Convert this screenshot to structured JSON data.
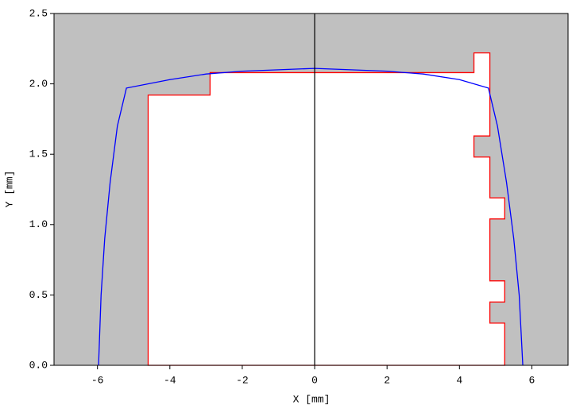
{
  "chart_data": {
    "type": "line",
    "xlabel": "X [mm]",
    "ylabel": "Y [mm]",
    "xlim": [
      -7.2,
      7
    ],
    "ylim": [
      0,
      2.5
    ],
    "xticks": [
      -6,
      -4,
      -2,
      0,
      2,
      4,
      6
    ],
    "yticks": [
      {
        "value": 0,
        "label": "0.0"
      },
      {
        "value": 0.5,
        "label": "0.5"
      },
      {
        "value": 1,
        "label": "1.0"
      },
      {
        "value": 1.5,
        "label": "1.5"
      },
      {
        "value": 2,
        "label": "2.0"
      },
      {
        "value": 2.5,
        "label": "2.5"
      }
    ],
    "background": "#c0c0c0",
    "vline_x": 0,
    "series": [
      {
        "color": "#ff0000",
        "fill": "#ffffff",
        "x": [
          -4.6,
          -4.6,
          -2.89,
          -2.89,
          4.4,
          4.4,
          4.84,
          4.84,
          4.4,
          4.4,
          4.84,
          4.84,
          5.25,
          5.25,
          4.84,
          4.84,
          5.25,
          5.25,
          4.84,
          4.84,
          5.25,
          5.25
        ],
        "values": [
          0,
          1.92,
          1.92,
          2.08,
          2.08,
          2.22,
          2.22,
          1.63,
          1.63,
          1.48,
          1.48,
          1.19,
          1.19,
          1.04,
          1.04,
          0.6,
          0.6,
          0.45,
          0.45,
          0.3,
          0.3,
          0
        ]
      },
      {
        "color": "#0000ff",
        "x": [
          -5.97,
          -5.9,
          -5.8,
          -5.65,
          -5.45,
          -5.2,
          -4,
          -3,
          -2,
          -1,
          0,
          1,
          2,
          3,
          4,
          4.8,
          5.05,
          5.3,
          5.5,
          5.65,
          5.75
        ],
        "values": [
          0,
          0.5,
          0.9,
          1.3,
          1.7,
          1.97,
          2.03,
          2.07,
          2.09,
          2.1,
          2.11,
          2.1,
          2.09,
          2.07,
          2.03,
          1.97,
          1.7,
          1.3,
          0.9,
          0.5,
          0
        ]
      }
    ]
  }
}
